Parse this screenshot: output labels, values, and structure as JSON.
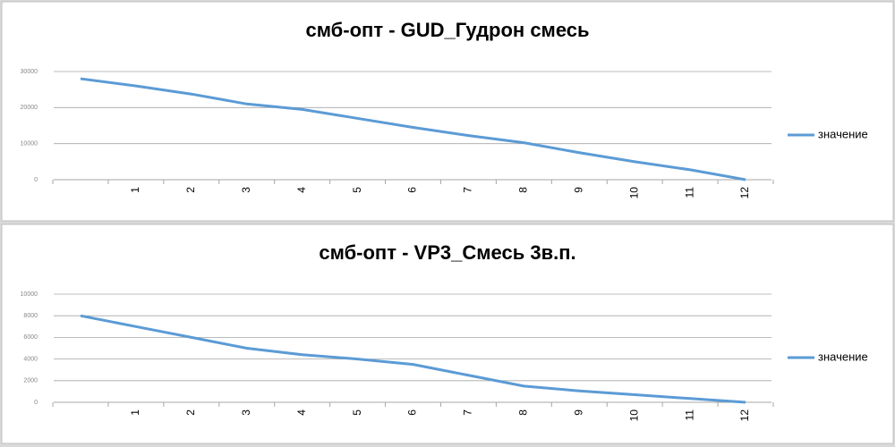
{
  "chart_data": [
    {
      "type": "line",
      "title": "смб-опт - GUD_Гудрон смесь",
      "categories": [
        null,
        "1",
        "2",
        "3",
        "4",
        "5",
        "6",
        "7",
        "8",
        "9",
        "10",
        "11",
        "12"
      ],
      "series": [
        {
          "name": "значение",
          "color": "#5b9bd5",
          "values": [
            28000,
            26000,
            23750,
            21000,
            19500,
            17000,
            14500,
            12250,
            10250,
            7500,
            5000,
            2750,
            0
          ]
        }
      ],
      "ylim": [
        0,
        30000
      ],
      "yticks": [
        0,
        10000,
        20000,
        30000
      ],
      "grid": true,
      "legend": "right"
    },
    {
      "type": "line",
      "title": "смб-опт - VP3_Смесь 3в.п.",
      "categories": [
        null,
        "1",
        "2",
        "3",
        "4",
        "5",
        "6",
        "7",
        "8",
        "9",
        "10",
        "11",
        "12"
      ],
      "series": [
        {
          "name": "значение",
          "color": "#5b9bd5",
          "values": [
            8000,
            7000,
            6000,
            5000,
            4400,
            4000,
            3500,
            2500,
            1500,
            1050,
            700,
            350,
            0
          ]
        }
      ],
      "ylim": [
        0,
        10000
      ],
      "yticks": [
        0,
        2000,
        4000,
        6000,
        8000,
        10000
      ],
      "grid": true,
      "legend": "right"
    }
  ]
}
